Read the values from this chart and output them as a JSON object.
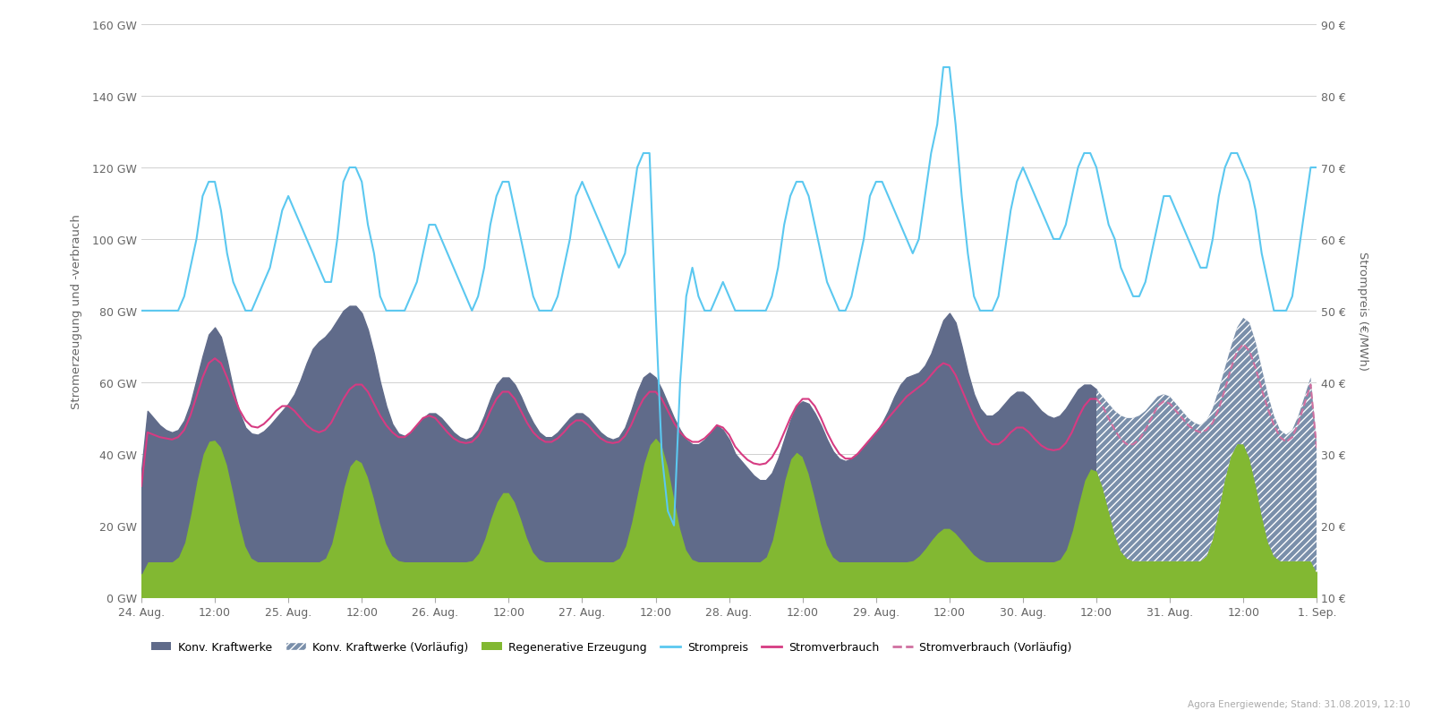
{
  "ylabel_left": "Stromerzeugung und -verbrauch",
  "ylabel_right": "Strompreis (€/MWh)",
  "ylim_left": [
    0,
    160
  ],
  "ylim_right": [
    10,
    90
  ],
  "yticks_left": [
    0,
    20,
    40,
    60,
    80,
    100,
    120,
    140,
    160
  ],
  "yticks_right": [
    10,
    20,
    30,
    40,
    50,
    60,
    70,
    80,
    90
  ],
  "ytick_labels_left": [
    "0 GW",
    "20 GW",
    "40 GW",
    "60 GW",
    "80 GW",
    "100 GW",
    "120 GW",
    "140 GW",
    "160 GW"
  ],
  "ytick_labels_right": [
    "10 €",
    "20 €",
    "30 €",
    "40 €",
    "50 €",
    "60 €",
    "70 €",
    "80 €",
    "90 €"
  ],
  "background_color": "#ffffff",
  "grid_color": "#d0d0d0",
  "color_konv": "#606b8a",
  "color_konv_vorl": "#7a8faa",
  "color_regen": "#82b832",
  "color_strompreis": "#5bc8f0",
  "color_verbrauch": "#d63b82",
  "color_verbrauch_vorl": "#d070a0",
  "figsize": [
    16.0,
    8.04
  ],
  "dpi": 100,
  "watermark": "Agora Energiewende; Stand: 31.08.2019, 12:10",
  "xtick_labels": [
    "24. Aug.",
    "12:00",
    "25. Aug.",
    "12:00",
    "26. Aug.",
    "12:00",
    "27. Aug.",
    "12:00",
    "28. Aug.",
    "12:00",
    "29. Aug.",
    "12:00",
    "30. Aug.",
    "12:00",
    "31. Aug.",
    "12:00",
    "1. Sep."
  ],
  "legend_labels": [
    "Konv. Kraftwerke",
    "Konv. Kraftwerke (Vorläufig)",
    "Regenerative Erzeugung",
    "Strompreis",
    "Stromverbrauch",
    "Stromverbrauch (Vorläufig)"
  ],
  "transition_hour": 156,
  "n_points": 193,
  "regen_raw": [
    10,
    10,
    10,
    10,
    10,
    10,
    10,
    14,
    22,
    34,
    42,
    44,
    45,
    43,
    38,
    30,
    20,
    13,
    10,
    10,
    10,
    10,
    10,
    10,
    10,
    10,
    10,
    10,
    10,
    10,
    10,
    13,
    22,
    32,
    38,
    40,
    38,
    35,
    28,
    20,
    14,
    11,
    10,
    10,
    10,
    10,
    10,
    10,
    10,
    10,
    10,
    10,
    10,
    10,
    10,
    11,
    16,
    22,
    28,
    30,
    30,
    28,
    22,
    16,
    12,
    10,
    10,
    10,
    10,
    10,
    10,
    10,
    10,
    10,
    10,
    10,
    10,
    10,
    10,
    13,
    20,
    30,
    38,
    44,
    46,
    44,
    38,
    28,
    18,
    12,
    10,
    10,
    10,
    10,
    10,
    10,
    10,
    10,
    10,
    10,
    10,
    10,
    10,
    14,
    24,
    34,
    40,
    42,
    40,
    36,
    28,
    20,
    14,
    10,
    10,
    10,
    10,
    10,
    10,
    10,
    10,
    10,
    10,
    10,
    10,
    10,
    10,
    11,
    14,
    16,
    18,
    20,
    20,
    18,
    16,
    14,
    12,
    10,
    10,
    10,
    10,
    10,
    10,
    10,
    10,
    10,
    10,
    10,
    10,
    10,
    10,
    12,
    18,
    26,
    34,
    38,
    36,
    32,
    24,
    16,
    12,
    10,
    10,
    10,
    10,
    10,
    10,
    10,
    10,
    10,
    10,
    10,
    10,
    10,
    10,
    14,
    24,
    34,
    40,
    44,
    44,
    40,
    32,
    22,
    14,
    10,
    10,
    10,
    10,
    10,
    10,
    10,
    10
  ],
  "konv_total_raw": [
    54,
    52,
    50,
    48,
    46,
    46,
    46,
    48,
    54,
    60,
    68,
    74,
    78,
    74,
    66,
    58,
    50,
    47,
    45,
    45,
    46,
    48,
    50,
    52,
    54,
    56,
    60,
    66,
    70,
    72,
    72,
    74,
    78,
    80,
    82,
    82,
    80,
    76,
    68,
    60,
    52,
    48,
    45,
    44,
    46,
    48,
    50,
    52,
    52,
    50,
    48,
    46,
    44,
    44,
    44,
    46,
    50,
    56,
    60,
    62,
    62,
    60,
    56,
    52,
    48,
    46,
    44,
    44,
    46,
    48,
    50,
    52,
    52,
    50,
    48,
    46,
    44,
    44,
    44,
    46,
    52,
    58,
    62,
    64,
    62,
    58,
    54,
    50,
    46,
    44,
    42,
    42,
    44,
    46,
    48,
    50,
    42,
    40,
    38,
    36,
    34,
    32,
    32,
    34,
    38,
    44,
    50,
    54,
    56,
    54,
    52,
    48,
    44,
    40,
    38,
    38,
    38,
    40,
    42,
    44,
    46,
    48,
    52,
    56,
    60,
    62,
    62,
    62,
    64,
    68,
    72,
    78,
    82,
    78,
    70,
    62,
    56,
    52,
    50,
    50,
    52,
    54,
    56,
    58,
    58,
    56,
    54,
    52,
    50,
    50,
    50,
    52,
    56,
    58,
    60,
    60,
    58,
    56,
    54,
    52,
    50,
    50,
    50,
    50,
    52,
    54,
    56,
    58,
    56,
    54,
    52,
    50,
    48,
    48,
    48,
    52,
    58,
    64,
    70,
    76,
    80,
    78,
    72,
    64,
    56,
    50,
    46,
    44,
    46,
    50,
    56,
    62,
    66
  ],
  "verbrauch_raw": [
    47,
    46,
    45,
    45,
    44,
    44,
    44,
    46,
    50,
    56,
    62,
    66,
    68,
    66,
    62,
    56,
    52,
    49,
    47,
    47,
    48,
    50,
    52,
    54,
    54,
    52,
    50,
    48,
    46,
    46,
    46,
    48,
    52,
    56,
    58,
    60,
    60,
    58,
    54,
    50,
    48,
    46,
    44,
    44,
    46,
    48,
    50,
    52,
    50,
    48,
    46,
    44,
    43,
    43,
    43,
    44,
    48,
    52,
    56,
    58,
    58,
    56,
    52,
    48,
    46,
    44,
    43,
    43,
    44,
    46,
    48,
    50,
    50,
    48,
    46,
    44,
    43,
    43,
    43,
    44,
    48,
    52,
    56,
    58,
    58,
    56,
    52,
    48,
    46,
    44,
    43,
    43,
    44,
    46,
    48,
    50,
    44,
    42,
    40,
    38,
    37,
    37,
    37,
    38,
    42,
    46,
    50,
    54,
    56,
    56,
    54,
    50,
    46,
    42,
    40,
    38,
    38,
    40,
    42,
    44,
    46,
    48,
    50,
    52,
    54,
    56,
    58,
    58,
    60,
    62,
    64,
    66,
    66,
    62,
    58,
    54,
    50,
    46,
    44,
    42,
    42,
    44,
    46,
    48,
    48,
    46,
    44,
    42,
    41,
    41,
    41,
    42,
    46,
    50,
    54,
    56,
    56,
    54,
    50,
    46,
    44,
    42,
    42,
    44,
    46,
    50,
    54,
    56,
    54,
    52,
    50,
    48,
    46,
    46,
    46,
    48,
    52,
    58,
    64,
    70,
    72,
    70,
    64,
    58,
    52,
    48,
    44,
    42,
    44,
    48,
    54,
    60,
    64
  ],
  "strompreis_eur": [
    50,
    50,
    50,
    50,
    50,
    50,
    50,
    52,
    56,
    60,
    66,
    68,
    68,
    64,
    58,
    54,
    52,
    50,
    50,
    52,
    54,
    56,
    60,
    64,
    66,
    64,
    62,
    60,
    58,
    56,
    54,
    54,
    60,
    68,
    70,
    70,
    68,
    62,
    58,
    52,
    50,
    50,
    50,
    50,
    52,
    54,
    58,
    62,
    62,
    60,
    58,
    56,
    54,
    52,
    50,
    52,
    56,
    62,
    66,
    68,
    68,
    64,
    60,
    56,
    52,
    50,
    50,
    50,
    52,
    56,
    60,
    66,
    68,
    66,
    64,
    62,
    60,
    58,
    56,
    58,
    64,
    70,
    72,
    72,
    50,
    30,
    22,
    20,
    40,
    52,
    56,
    52,
    50,
    50,
    52,
    54,
    52,
    50,
    50,
    50,
    50,
    50,
    50,
    52,
    56,
    62,
    66,
    68,
    68,
    66,
    62,
    58,
    54,
    52,
    50,
    50,
    52,
    56,
    60,
    66,
    68,
    68,
    66,
    64,
    62,
    60,
    58,
    60,
    66,
    72,
    76,
    84,
    84,
    76,
    66,
    58,
    52,
    50,
    50,
    50,
    52,
    58,
    64,
    68,
    70,
    68,
    66,
    64,
    62,
    60,
    60,
    62,
    66,
    70,
    72,
    72,
    70,
    66,
    62,
    60,
    56,
    54,
    52,
    52,
    54,
    58,
    62,
    66,
    66,
    64,
    62,
    60,
    58,
    56,
    56,
    60,
    66,
    70,
    72,
    72,
    70,
    68,
    64,
    58,
    54,
    50,
    50,
    50,
    52,
    58,
    64,
    70,
    70
  ]
}
